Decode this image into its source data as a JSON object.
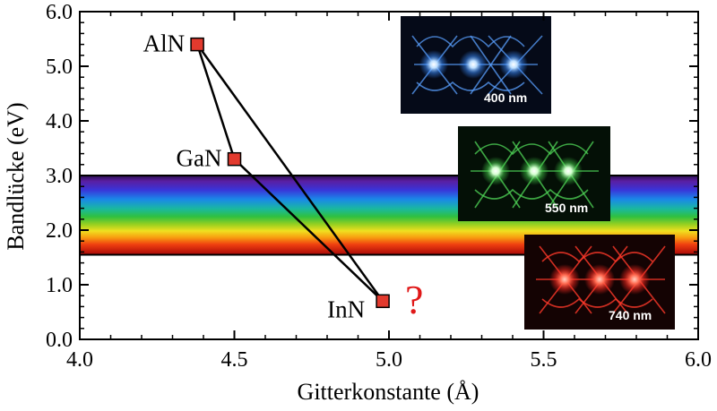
{
  "chart_data": {
    "type": "scatter",
    "xlabel": "Gitterkonstante (Å)",
    "ylabel": "Bandlücke (eV)",
    "xlim": [
      4.0,
      6.0
    ],
    "ylim": [
      0.0,
      6.0
    ],
    "x_ticks": [
      "4.0",
      "4.5",
      "5.0",
      "5.5",
      "6.0"
    ],
    "y_ticks": [
      "0.0",
      "1.0",
      "2.0",
      "3.0",
      "4.0",
      "5.0",
      "6.0"
    ],
    "grid": false,
    "points": [
      {
        "label": "AlN",
        "x": 4.38,
        "y": 5.4
      },
      {
        "label": "GaN",
        "x": 4.5,
        "y": 3.3
      },
      {
        "label": "InN",
        "x": 4.98,
        "y": 0.7
      }
    ],
    "connections": [
      [
        "AlN",
        "GaN"
      ],
      [
        "GaN",
        "InN"
      ],
      [
        "AlN",
        "InN"
      ]
    ],
    "marker_color": "#e23a2e",
    "line_color": "#000000",
    "visible_spectrum_band": {
      "y_from": 1.55,
      "y_to": 3.0
    },
    "annotations": [
      {
        "text": "?",
        "color": "#e01818"
      }
    ],
    "insets": [
      {
        "label": "400 nm",
        "color": "#3a8cff"
      },
      {
        "label": "550 nm",
        "color": "#44d04a"
      },
      {
        "label": "740 nm",
        "color": "#ff2a20"
      }
    ]
  }
}
